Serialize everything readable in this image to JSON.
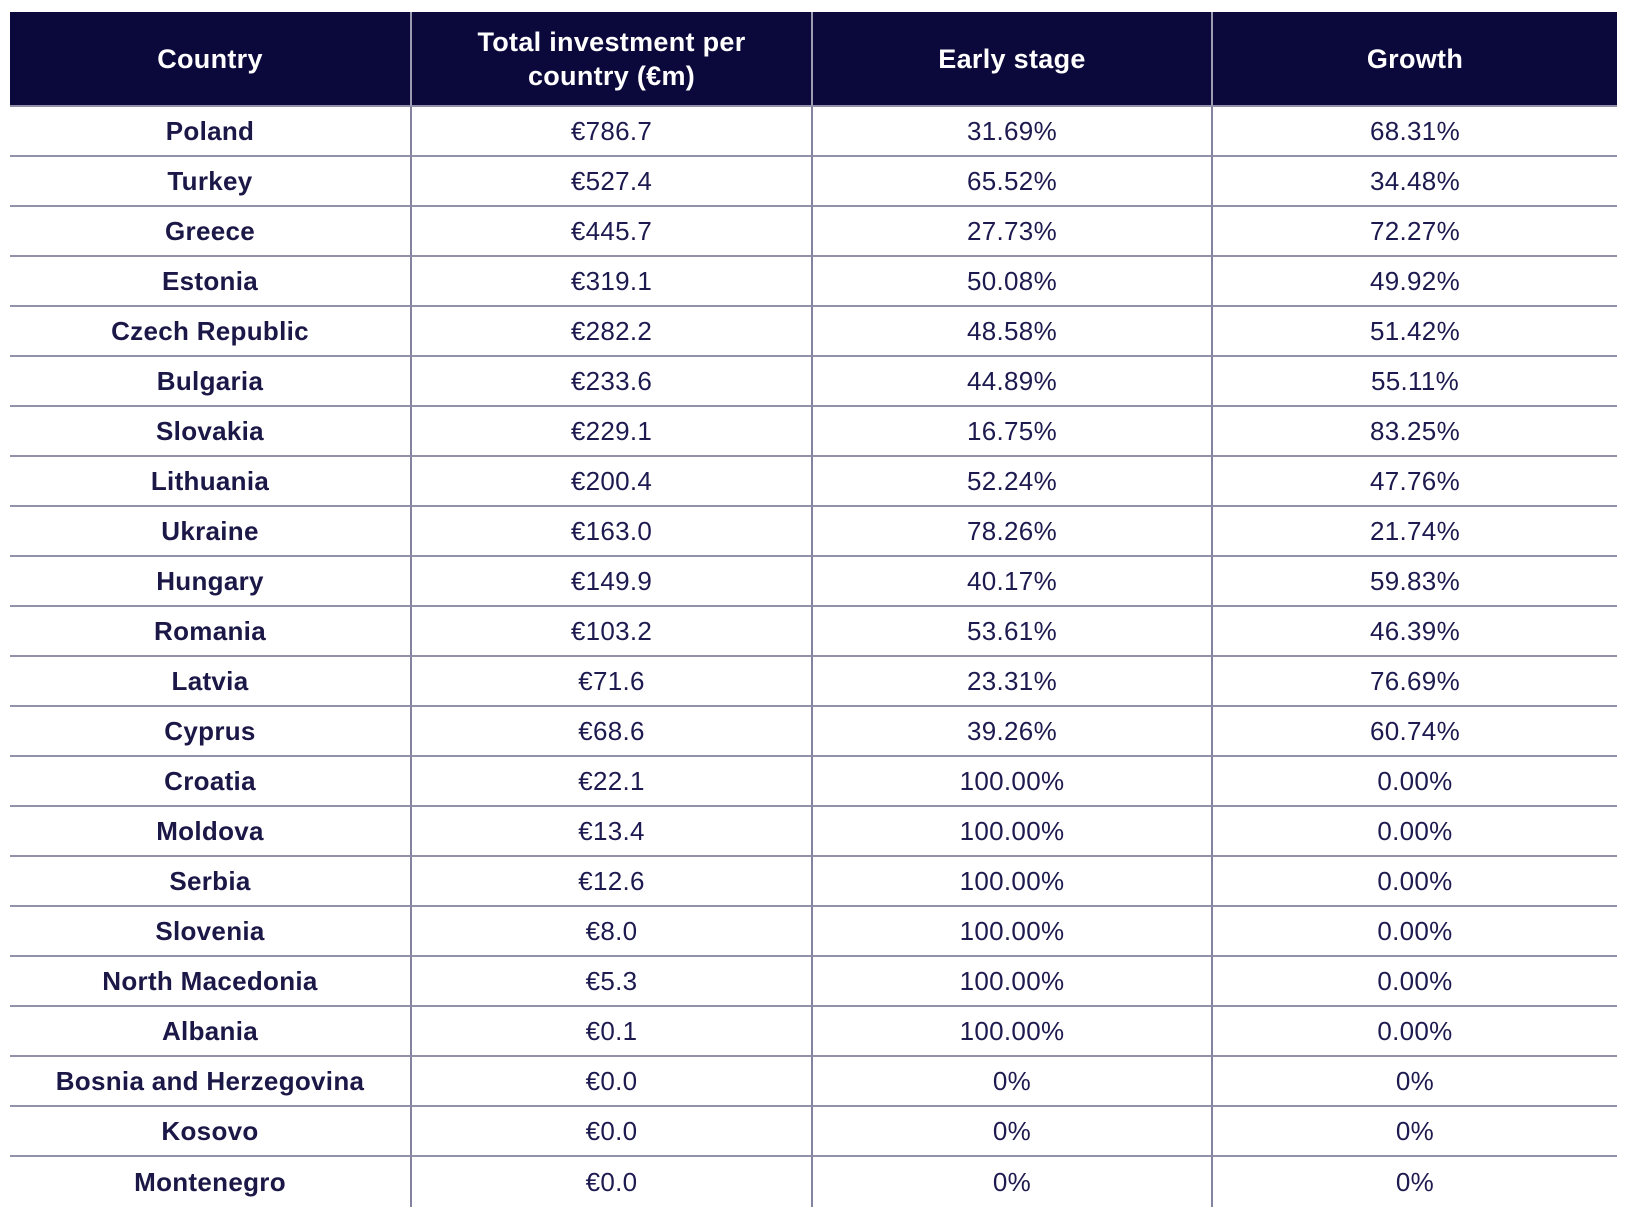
{
  "colors": {
    "header_background": "#0b093b",
    "header_text": "#ffffff",
    "body_text": "#1d1a4f",
    "grid_line": "#8a8aa4",
    "row_background": "#ffffff"
  },
  "chart_data": {
    "type": "table",
    "columns": [
      "Country",
      "Total investment per country (€m)",
      "Early stage",
      "Growth"
    ],
    "rows": [
      {
        "country": "Poland",
        "total": "€786.7",
        "early": "31.69%",
        "growth": "68.31%"
      },
      {
        "country": "Turkey",
        "total": "€527.4",
        "early": "65.52%",
        "growth": "34.48%"
      },
      {
        "country": "Greece",
        "total": "€445.7",
        "early": "27.73%",
        "growth": "72.27%"
      },
      {
        "country": "Estonia",
        "total": "€319.1",
        "early": "50.08%",
        "growth": "49.92%"
      },
      {
        "country": "Czech Republic",
        "total": "€282.2",
        "early": "48.58%",
        "growth": "51.42%"
      },
      {
        "country": "Bulgaria",
        "total": "€233.6",
        "early": "44.89%",
        "growth": "55.11%"
      },
      {
        "country": "Slovakia",
        "total": "€229.1",
        "early": "16.75%",
        "growth": "83.25%"
      },
      {
        "country": "Lithuania",
        "total": "€200.4",
        "early": "52.24%",
        "growth": "47.76%"
      },
      {
        "country": "Ukraine",
        "total": "€163.0",
        "early": "78.26%",
        "growth": "21.74%"
      },
      {
        "country": "Hungary",
        "total": "€149.9",
        "early": "40.17%",
        "growth": "59.83%"
      },
      {
        "country": "Romania",
        "total": "€103.2",
        "early": "53.61%",
        "growth": "46.39%"
      },
      {
        "country": "Latvia",
        "total": "€71.6",
        "early": "23.31%",
        "growth": "76.69%"
      },
      {
        "country": "Cyprus",
        "total": "€68.6",
        "early": "39.26%",
        "growth": "60.74%"
      },
      {
        "country": "Croatia",
        "total": "€22.1",
        "early": "100.00%",
        "growth": "0.00%"
      },
      {
        "country": "Moldova",
        "total": "€13.4",
        "early": "100.00%",
        "growth": "0.00%"
      },
      {
        "country": "Serbia",
        "total": "€12.6",
        "early": "100.00%",
        "growth": "0.00%"
      },
      {
        "country": "Slovenia",
        "total": "€8.0",
        "early": "100.00%",
        "growth": "0.00%"
      },
      {
        "country": "North Macedonia",
        "total": "€5.3",
        "early": "100.00%",
        "growth": "0.00%"
      },
      {
        "country": "Albania",
        "total": "€0.1",
        "early": "100.00%",
        "growth": "0.00%"
      },
      {
        "country": "Bosnia and Herzegovina",
        "total": "€0.0",
        "early": "0%",
        "growth": "0%"
      },
      {
        "country": "Kosovo",
        "total": "€0.0",
        "early": "0%",
        "growth": "0%"
      },
      {
        "country": "Montenegro",
        "total": "€0.0",
        "early": "0%",
        "growth": "0%"
      }
    ]
  }
}
